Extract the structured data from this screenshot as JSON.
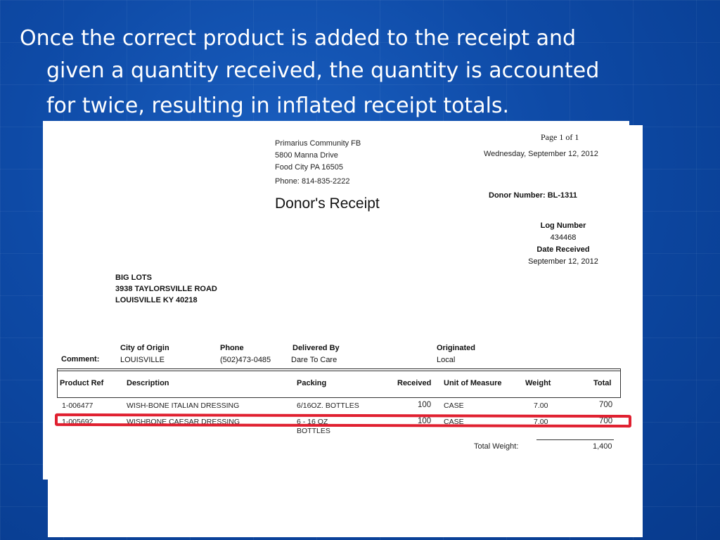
{
  "slide": {
    "line1": "Once the correct product is added to the receipt and",
    "line2": "given a quantity received, the quantity is accounted",
    "line3": "for twice, resulting in inflated receipt totals."
  },
  "receipt": {
    "org_name": "Primarius Community FB",
    "org_street": "5800 Manna Drive",
    "org_city": "Food City PA 16505",
    "phone_label": "Phone:",
    "phone_value": "814-835-2222",
    "title": "Donor's Receipt",
    "page": "Page 1 of 1",
    "date": "Wednesday, September 12, 2012",
    "donor_number_label": "Donor Number:",
    "donor_number": "BL-1311",
    "log_number_label": "Log Number",
    "log_number": "434468",
    "date_received_label": "Date Received",
    "date_received": "September 12, 2012",
    "donor_name": "BIG LOTS",
    "donor_street": "3938 TAYLORSVILLE ROAD",
    "donor_city": "LOUISVILLE KY 40218",
    "comment_label": "Comment:",
    "city_of_origin_label": "City of Origin",
    "city_of_origin": "LOUISVILLE",
    "phone2_label": "Phone",
    "phone2": "(502)473-0485",
    "delivered_by_label": "Delivered By",
    "delivered_by": "Dare To Care",
    "originated_label": "Originated",
    "originated": "Local",
    "columns": [
      "Product Ref",
      "Description",
      "Packing",
      "Received",
      "Unit of Measure",
      "Weight",
      "Total"
    ],
    "rows": [
      {
        "ref": "1-006477",
        "desc": "WISH-BONE ITALIAN DRESSING",
        "packing": "6/16OZ. BOTTLES",
        "packing2": "",
        "received": "100",
        "uom": "CASE",
        "weight": "7.00",
        "total": "700"
      },
      {
        "ref": "1-005692",
        "desc": "WISHBONE CAESAR DRESSING",
        "packing": "6 - 16 OZ",
        "packing2": "BOTTLES",
        "received": "100",
        "uom": "CASE",
        "weight": "7.00",
        "total": "700"
      }
    ],
    "total_weight_label": "Total Weight:",
    "total_weight": "1,400"
  },
  "colors": {
    "background": "#0e4aa6",
    "highlight": "#e02030"
  }
}
